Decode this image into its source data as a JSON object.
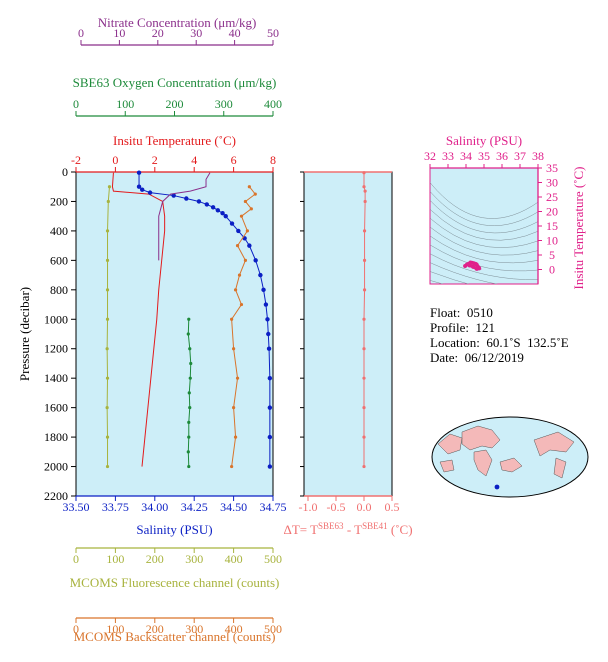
{
  "colors": {
    "plot_bg": "#cdeef8",
    "nitrate": "#8b2f8b",
    "oxygen": "#1d8a3a",
    "temperature": "#e31a1c",
    "salinity": "#0b1fc4",
    "fluorescence": "#a8b33e",
    "backscatter": "#d9742b",
    "ts": "#e0208a",
    "diff": "#f07070"
  },
  "axes": {
    "nitrate": {
      "label": "Nitrate Concentration (μm/kg)",
      "ticks": [
        "0",
        "10",
        "20",
        "30",
        "40",
        "50"
      ]
    },
    "oxygen": {
      "label": "SBE63 Oxygen Concentration (μm/kg)",
      "ticks": [
        "0",
        "100",
        "200",
        "300",
        "400"
      ]
    },
    "temperature": {
      "label": "Insitu Temperature (˚C)",
      "ticks": [
        "-2",
        "0",
        "2",
        "4",
        "6",
        "8"
      ]
    },
    "salinity": {
      "label": "Salinity (PSU)",
      "ticks": [
        "33.50",
        "33.75",
        "34.00",
        "34.25",
        "34.50",
        "34.75"
      ]
    },
    "pressure": {
      "label": "Pressure (decibar)",
      "ticks": [
        "0",
        "200",
        "400",
        "600",
        "800",
        "1000",
        "1200",
        "1400",
        "1600",
        "1800",
        "2000",
        "2200"
      ]
    },
    "fluorescence": {
      "label": "MCOMS Fluorescence channel (counts)",
      "ticks": [
        "0",
        "100",
        "200",
        "300",
        "400",
        "500"
      ]
    },
    "backscatter": {
      "label": "MCOMS Backscatter channel (counts)",
      "ticks": [
        "0",
        "100",
        "200",
        "300",
        "400",
        "500"
      ]
    },
    "diff": {
      "label_main": "ΔT= T",
      "label_sup1": "SBE63",
      "label_mid": " - T",
      "label_sup2": "SBE41",
      "label_end": " (˚C)",
      "ticks": [
        "-1.0",
        "-0.5",
        "0.0",
        "0.5"
      ]
    },
    "ts_salinity": {
      "label": "Salinity (PSU)",
      "ticks": [
        "32",
        "33",
        "34",
        "35",
        "36",
        "37",
        "38"
      ]
    },
    "ts_temperature": {
      "label": "Insitu Temperature (˚C)",
      "ticks": [
        "0",
        "5",
        "10",
        "15",
        "20",
        "25",
        "30",
        "35"
      ]
    }
  },
  "info": {
    "float": "Float:  0510",
    "profile": "Profile:  121",
    "location": "Location:  60.1˚S  132.5˚E",
    "date": "Date:  06/12/2019"
  },
  "chart_data": {
    "type": "line",
    "y_axis": "Pressure (decibar)",
    "ylim": [
      0,
      2200
    ],
    "y_reversed": true,
    "series": [
      {
        "name": "Insitu Temperature (˚C)",
        "xlim": [
          -2,
          8
        ],
        "pressure": [
          5,
          100,
          130,
          150,
          200,
          300,
          400,
          600,
          800,
          1000,
          1200,
          1400,
          1600,
          1800,
          2000
        ],
        "values": [
          -0.1,
          -0.15,
          -0.1,
          1.7,
          2.4,
          2.5,
          2.5,
          2.35,
          2.2,
          2.1,
          1.95,
          1.8,
          1.65,
          1.5,
          1.35
        ]
      },
      {
        "name": "Salinity (PSU)",
        "xlim": [
          33.5,
          34.75
        ],
        "pressure": [
          5,
          100,
          120,
          140,
          160,
          180,
          200,
          220,
          240,
          260,
          280,
          300,
          350,
          400,
          450,
          500,
          600,
          700,
          800,
          900,
          1000,
          1100,
          1200,
          1400,
          1600,
          1800,
          2000
        ],
        "values": [
          33.9,
          33.9,
          33.92,
          33.97,
          34.12,
          34.2,
          34.28,
          34.33,
          34.37,
          34.4,
          34.43,
          34.45,
          34.49,
          34.53,
          34.57,
          34.6,
          34.64,
          34.67,
          34.69,
          34.705,
          34.715,
          34.72,
          34.725,
          34.73,
          34.73,
          34.73,
          34.73
        ]
      },
      {
        "name": "SBE63 Oxygen Concentration (μm/kg)",
        "xlim": [
          0,
          400
        ],
        "pressure": [
          1000,
          1100,
          1200,
          1300,
          1400,
          1500,
          1600,
          1700,
          1800,
          1900,
          2000
        ],
        "values": [
          229,
          228,
          231,
          233,
          232,
          230,
          231,
          229,
          229,
          228,
          229
        ]
      },
      {
        "name": "Nitrate Concentration (μm/kg)",
        "xlim": [
          0,
          50
        ],
        "pressure": [
          5,
          50,
          100,
          130,
          150,
          200,
          300,
          400,
          600
        ],
        "values": [
          34,
          33,
          33,
          29,
          24,
          22,
          21,
          21,
          21
        ]
      },
      {
        "name": "MCOMS Fluorescence channel (counts)",
        "xlim": [
          0,
          500
        ],
        "pressure": [
          100,
          200,
          400,
          600,
          800,
          1000,
          1200,
          1400,
          1600,
          1800,
          2000
        ],
        "values": [
          85,
          82,
          80,
          80,
          80,
          80,
          79,
          80,
          79,
          80,
          80
        ]
      },
      {
        "name": "MCOMS Backscatter channel (counts)",
        "xlim": [
          0,
          500
        ],
        "pressure": [
          100,
          150,
          200,
          250,
          300,
          400,
          500,
          600,
          700,
          800,
          900,
          1000,
          1200,
          1400,
          1600,
          1800,
          2000
        ],
        "values": [
          440,
          455,
          430,
          445,
          420,
          435,
          410,
          430,
          415,
          405,
          420,
          395,
          400,
          410,
          400,
          405,
          395
        ]
      },
      {
        "name": "ΔT= T(SBE63) - T(SBE41) (˚C)",
        "xlim": [
          -1.0,
          0.5
        ],
        "pressure": [
          5,
          100,
          130,
          200,
          400,
          600,
          800,
          1000,
          1200,
          1400,
          1600,
          1800,
          2000
        ],
        "values": [
          0.0,
          0.0,
          0.02,
          0.02,
          0.01,
          0.01,
          0.01,
          0.0,
          0.0,
          0.0,
          0.0,
          0.0,
          0.0
        ]
      }
    ],
    "ts_diagram": {
      "xlim": [
        32,
        38
      ],
      "ylim": [
        -5,
        35
      ],
      "points": [
        [
          33.95,
          1.2
        ],
        [
          34.05,
          1.7
        ],
        [
          34.15,
          2.0
        ],
        [
          34.25,
          2.4
        ],
        [
          34.35,
          2.3
        ],
        [
          34.45,
          2.1
        ],
        [
          34.55,
          1.9
        ],
        [
          34.6,
          1.6
        ],
        [
          34.65,
          1.0
        ],
        [
          34.7,
          0.7
        ],
        [
          34.73,
          0.4
        ],
        [
          34.6,
          0.2
        ],
        [
          34.4,
          0.9
        ],
        [
          34.2,
          1.4
        ]
      ]
    }
  }
}
